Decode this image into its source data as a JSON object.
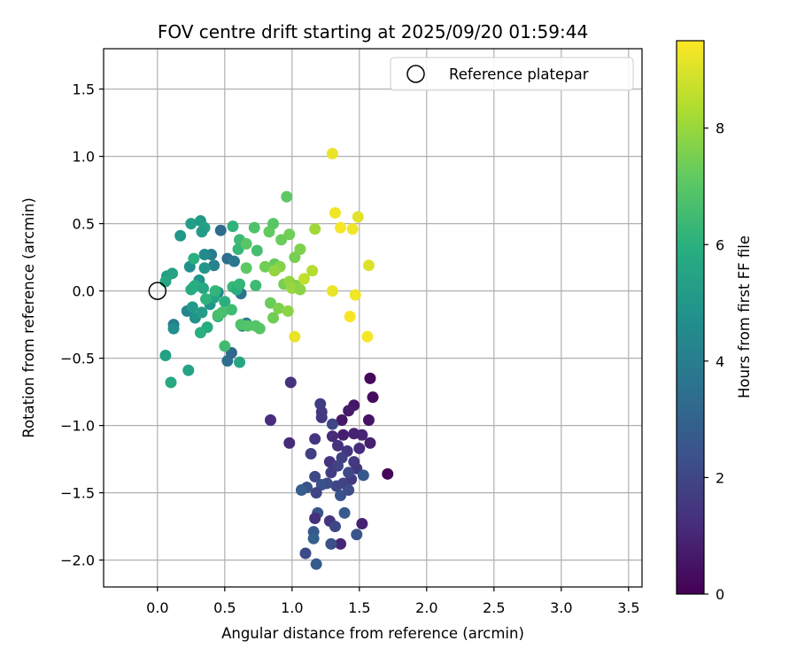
{
  "chart_data": {
    "type": "scatter",
    "title": "FOV centre drift starting at 2025/09/20 01:59:44",
    "xlabel": "Angular distance from reference (arcmin)",
    "ylabel": "Rotation from reference (arcmin)",
    "colorbar_label": "Hours from first FF file",
    "colormap": "viridis",
    "xlim": [
      -0.4,
      3.6
    ],
    "ylim": [
      -2.2,
      1.8
    ],
    "clim": [
      0,
      9.5
    ],
    "xticks": [
      "0.0",
      "0.5",
      "1.0",
      "1.5",
      "2.0",
      "2.5",
      "3.0",
      "3.5"
    ],
    "yticks": [
      "−2.0",
      "−1.5",
      "−1.0",
      "−0.5",
      "0.0",
      "0.5",
      "1.0",
      "1.5"
    ],
    "colorbar_ticks": [
      "0",
      "2",
      "4",
      "6",
      "8"
    ],
    "grid": true,
    "legend": {
      "label": "Reference platepar",
      "position": "top-right"
    },
    "reference_point": {
      "x": 0.0,
      "y": 0.0
    },
    "points": [
      {
        "x": 1.58,
        "y": -0.65,
        "c": 0.2
      },
      {
        "x": 1.6,
        "y": -0.79,
        "c": 0.3
      },
      {
        "x": 1.71,
        "y": -1.36,
        "c": 0.1
      },
      {
        "x": 1.46,
        "y": -0.85,
        "c": 0.6
      },
      {
        "x": 1.42,
        "y": -0.89,
        "c": 0.7
      },
      {
        "x": 1.37,
        "y": -0.96,
        "c": 0.6
      },
      {
        "x": 1.57,
        "y": -0.96,
        "c": 0.5
      },
      {
        "x": 1.58,
        "y": -1.13,
        "c": 0.8
      },
      {
        "x": 1.52,
        "y": -1.07,
        "c": 1.0
      },
      {
        "x": 1.46,
        "y": -1.06,
        "c": 0.9
      },
      {
        "x": 1.38,
        "y": -1.07,
        "c": 0.8
      },
      {
        "x": 1.3,
        "y": -1.08,
        "c": 1.1
      },
      {
        "x": 1.5,
        "y": -1.17,
        "c": 1.2
      },
      {
        "x": 1.52,
        "y": -1.73,
        "c": 0.9
      },
      {
        "x": 1.36,
        "y": -1.88,
        "c": 1.0
      },
      {
        "x": 0.84,
        "y": -0.96,
        "c": 1.2
      },
      {
        "x": 0.98,
        "y": -1.13,
        "c": 1.1
      },
      {
        "x": 0.99,
        "y": -0.68,
        "c": 1.3
      },
      {
        "x": 1.17,
        "y": -1.1,
        "c": 1.4
      },
      {
        "x": 1.22,
        "y": -0.94,
        "c": 1.5
      },
      {
        "x": 1.21,
        "y": -0.84,
        "c": 1.7
      },
      {
        "x": 1.22,
        "y": -0.9,
        "c": 1.6
      },
      {
        "x": 1.34,
        "y": -1.15,
        "c": 1.3
      },
      {
        "x": 1.41,
        "y": -1.19,
        "c": 1.5
      },
      {
        "x": 1.46,
        "y": -1.27,
        "c": 1.6
      },
      {
        "x": 1.28,
        "y": -1.27,
        "c": 1.4
      },
      {
        "x": 1.37,
        "y": -1.24,
        "c": 1.8
      },
      {
        "x": 1.34,
        "y": -1.3,
        "c": 1.9
      },
      {
        "x": 1.29,
        "y": -1.35,
        "c": 1.7
      },
      {
        "x": 1.48,
        "y": -1.32,
        "c": 1.5
      },
      {
        "x": 1.44,
        "y": -1.4,
        "c": 1.6
      },
      {
        "x": 1.42,
        "y": -1.35,
        "c": 2.1
      },
      {
        "x": 1.38,
        "y": -1.43,
        "c": 1.9
      },
      {
        "x": 1.33,
        "y": -1.45,
        "c": 2.0
      },
      {
        "x": 1.26,
        "y": -1.43,
        "c": 2.2
      },
      {
        "x": 1.22,
        "y": -1.44,
        "c": 2.3
      },
      {
        "x": 1.17,
        "y": -1.38,
        "c": 2.1
      },
      {
        "x": 1.14,
        "y": -1.21,
        "c": 1.8
      },
      {
        "x": 1.3,
        "y": -0.99,
        "c": 2.0
      },
      {
        "x": 1.36,
        "y": -1.52,
        "c": 2.4
      },
      {
        "x": 1.42,
        "y": -1.48,
        "c": 2.2
      },
      {
        "x": 1.53,
        "y": -1.37,
        "c": 2.6
      },
      {
        "x": 1.18,
        "y": -1.5,
        "c": 1.9
      },
      {
        "x": 1.11,
        "y": -1.46,
        "c": 2.4
      },
      {
        "x": 1.07,
        "y": -1.48,
        "c": 2.8
      },
      {
        "x": 1.19,
        "y": -1.65,
        "c": 2.5
      },
      {
        "x": 1.17,
        "y": -1.69,
        "c": 1.3
      },
      {
        "x": 1.28,
        "y": -1.71,
        "c": 1.5
      },
      {
        "x": 1.32,
        "y": -1.75,
        "c": 2.0
      },
      {
        "x": 1.39,
        "y": -1.65,
        "c": 2.7
      },
      {
        "x": 1.48,
        "y": -1.81,
        "c": 2.5
      },
      {
        "x": 1.16,
        "y": -1.79,
        "c": 2.6
      },
      {
        "x": 1.16,
        "y": -1.84,
        "c": 2.9
      },
      {
        "x": 1.29,
        "y": -1.88,
        "c": 2.3
      },
      {
        "x": 1.1,
        "y": -1.95,
        "c": 2.1
      },
      {
        "x": 1.18,
        "y": -2.03,
        "c": 2.7
      },
      {
        "x": 0.47,
        "y": 0.45,
        "c": 3.3
      },
      {
        "x": 0.52,
        "y": 0.24,
        "c": 3.4
      },
      {
        "x": 0.57,
        "y": 0.22,
        "c": 3.8
      },
      {
        "x": 0.62,
        "y": -0.02,
        "c": 3.6
      },
      {
        "x": 0.52,
        "y": -0.52,
        "c": 3.5
      },
      {
        "x": 0.55,
        "y": -0.46,
        "c": 3.2
      },
      {
        "x": 0.66,
        "y": -0.24,
        "c": 3.9
      },
      {
        "x": 0.63,
        "y": -0.26,
        "c": 4.1
      },
      {
        "x": 0.4,
        "y": 0.27,
        "c": 4.0
      },
      {
        "x": 0.42,
        "y": 0.19,
        "c": 4.2
      },
      {
        "x": 0.35,
        "y": 0.27,
        "c": 4.5
      },
      {
        "x": 0.45,
        "y": -0.01,
        "c": 4.4
      },
      {
        "x": 0.22,
        "y": -0.15,
        "c": 4.3
      },
      {
        "x": 0.12,
        "y": -0.25,
        "c": 4.0
      },
      {
        "x": 0.12,
        "y": -0.28,
        "c": 4.6
      },
      {
        "x": 0.27,
        "y": 0.03,
        "c": 4.8
      },
      {
        "x": 0.31,
        "y": 0.08,
        "c": 4.9
      },
      {
        "x": 0.35,
        "y": 0.17,
        "c": 5.0
      },
      {
        "x": 0.24,
        "y": 0.18,
        "c": 4.7
      },
      {
        "x": 0.26,
        "y": -0.12,
        "c": 5.1
      },
      {
        "x": 0.28,
        "y": -0.2,
        "c": 4.9
      },
      {
        "x": 0.33,
        "y": -0.16,
        "c": 5.2
      },
      {
        "x": 0.39,
        "y": -0.1,
        "c": 5.0
      },
      {
        "x": 0.25,
        "y": 0.5,
        "c": 5.3
      },
      {
        "x": 0.32,
        "y": 0.52,
        "c": 5.1
      },
      {
        "x": 0.35,
        "y": 0.47,
        "c": 5.4
      },
      {
        "x": 0.33,
        "y": 0.44,
        "c": 5.2
      },
      {
        "x": 0.17,
        "y": 0.41,
        "c": 5.0
      },
      {
        "x": 0.07,
        "y": 0.11,
        "c": 5.3
      },
      {
        "x": 0.11,
        "y": 0.13,
        "c": 5.5
      },
      {
        "x": 0.06,
        "y": 0.07,
        "c": 5.6
      },
      {
        "x": 0.06,
        "y": -0.48,
        "c": 5.4
      },
      {
        "x": 0.1,
        "y": -0.68,
        "c": 5.7
      },
      {
        "x": 0.23,
        "y": -0.59,
        "c": 5.5
      },
      {
        "x": 0.61,
        "y": -0.53,
        "c": 5.6
      },
      {
        "x": 0.25,
        "y": 0.01,
        "c": 5.8
      },
      {
        "x": 0.28,
        "y": 0.04,
        "c": 5.9
      },
      {
        "x": 0.34,
        "y": 0.02,
        "c": 5.7
      },
      {
        "x": 0.42,
        "y": -0.05,
        "c": 5.5
      },
      {
        "x": 0.45,
        "y": -0.19,
        "c": 5.9
      },
      {
        "x": 0.37,
        "y": -0.27,
        "c": 5.8
      },
      {
        "x": 0.32,
        "y": -0.31,
        "c": 6.0
      },
      {
        "x": 0.36,
        "y": -0.06,
        "c": 6.1
      },
      {
        "x": 0.27,
        "y": 0.24,
        "c": 6.0
      },
      {
        "x": 0.43,
        "y": 0.0,
        "c": 6.2
      },
      {
        "x": 0.5,
        "y": -0.08,
        "c": 6.0
      },
      {
        "x": 0.56,
        "y": 0.03,
        "c": 6.3
      },
      {
        "x": 0.59,
        "y": 0.01,
        "c": 5.9
      },
      {
        "x": 0.61,
        "y": 0.05,
        "c": 6.2
      },
      {
        "x": 0.73,
        "y": 0.04,
        "c": 6.4
      },
      {
        "x": 0.56,
        "y": 0.48,
        "c": 6.1
      },
      {
        "x": 0.61,
        "y": 0.38,
        "c": 6.4
      },
      {
        "x": 0.6,
        "y": 0.31,
        "c": 6.3
      },
      {
        "x": 0.5,
        "y": -0.41,
        "c": 6.5
      },
      {
        "x": 0.45,
        "y": -0.18,
        "c": 6.6
      },
      {
        "x": 0.48,
        "y": -0.16,
        "c": 6.7
      },
      {
        "x": 0.55,
        "y": -0.14,
        "c": 6.5
      },
      {
        "x": 0.62,
        "y": -0.25,
        "c": 6.8
      },
      {
        "x": 0.67,
        "y": -0.26,
        "c": 6.9
      },
      {
        "x": 0.66,
        "y": 0.35,
        "c": 7.0
      },
      {
        "x": 0.72,
        "y": 0.47,
        "c": 6.8
      },
      {
        "x": 0.74,
        "y": 0.3,
        "c": 6.6
      },
      {
        "x": 0.66,
        "y": 0.17,
        "c": 7.1
      },
      {
        "x": 0.83,
        "y": 0.44,
        "c": 7.2
      },
      {
        "x": 0.86,
        "y": 0.5,
        "c": 7.0
      },
      {
        "x": 0.92,
        "y": 0.38,
        "c": 7.3
      },
      {
        "x": 0.96,
        "y": 0.7,
        "c": 7.1
      },
      {
        "x": 0.98,
        "y": 0.42,
        "c": 7.4
      },
      {
        "x": 1.02,
        "y": 0.25,
        "c": 7.5
      },
      {
        "x": 1.06,
        "y": 0.31,
        "c": 7.6
      },
      {
        "x": 0.87,
        "y": 0.2,
        "c": 7.2
      },
      {
        "x": 0.91,
        "y": 0.18,
        "c": 7.7
      },
      {
        "x": 0.84,
        "y": -0.09,
        "c": 7.3
      },
      {
        "x": 0.86,
        "y": -0.2,
        "c": 7.4
      },
      {
        "x": 0.9,
        "y": -0.13,
        "c": 7.6
      },
      {
        "x": 0.97,
        "y": -0.15,
        "c": 7.8
      },
      {
        "x": 0.94,
        "y": 0.05,
        "c": 7.5
      },
      {
        "x": 0.98,
        "y": 0.07,
        "c": 7.9
      },
      {
        "x": 1.03,
        "y": 0.04,
        "c": 7.7
      },
      {
        "x": 1.0,
        "y": 0.02,
        "c": 8.0
      },
      {
        "x": 1.06,
        "y": 0.01,
        "c": 7.8
      },
      {
        "x": 0.76,
        "y": -0.28,
        "c": 7.0
      },
      {
        "x": 0.8,
        "y": 0.18,
        "c": 7.4
      },
      {
        "x": 0.87,
        "y": 0.15,
        "c": 7.9
      },
      {
        "x": 0.73,
        "y": -0.26,
        "c": 6.9
      },
      {
        "x": 1.17,
        "y": 0.46,
        "c": 8.1
      },
      {
        "x": 1.15,
        "y": 0.15,
        "c": 8.4
      },
      {
        "x": 1.09,
        "y": 0.09,
        "c": 8.6
      },
      {
        "x": 1.3,
        "y": 1.02,
        "c": 9.2
      },
      {
        "x": 1.32,
        "y": 0.58,
        "c": 9.3
      },
      {
        "x": 1.36,
        "y": 0.47,
        "c": 9.4
      },
      {
        "x": 1.45,
        "y": 0.46,
        "c": 9.3
      },
      {
        "x": 1.49,
        "y": 0.55,
        "c": 9.1
      },
      {
        "x": 1.57,
        "y": 0.19,
        "c": 9.0
      },
      {
        "x": 1.3,
        "y": 0.0,
        "c": 9.2
      },
      {
        "x": 1.47,
        "y": -0.03,
        "c": 9.3
      },
      {
        "x": 1.43,
        "y": -0.19,
        "c": 9.4
      },
      {
        "x": 1.56,
        "y": -0.34,
        "c": 9.4
      },
      {
        "x": 1.02,
        "y": -0.34,
        "c": 9.2
      }
    ]
  }
}
